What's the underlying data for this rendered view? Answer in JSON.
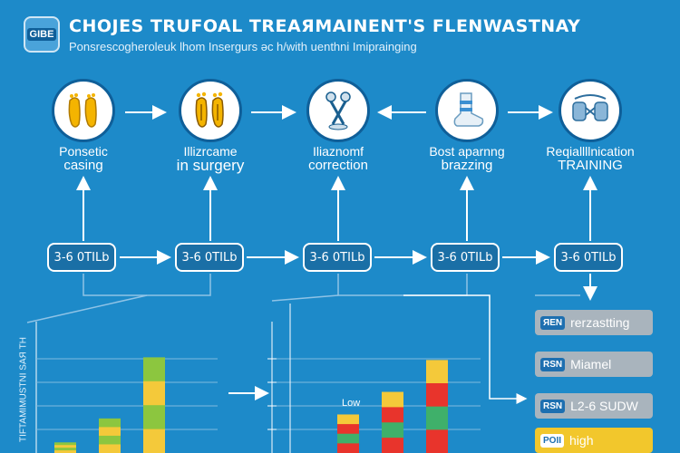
{
  "header": {
    "logo_text": "GIBE",
    "title": "CHOJES TRUFOAL TREAЯMAINENT'S FLENWASTNAY",
    "subtitle": "Ponsrescogheroleuk lhom Insergurs ǝc h/with uenthni Imiprainging"
  },
  "stages": [
    {
      "line1": "Ponsetic",
      "line2": "casing",
      "icon": "foot-cast-icon"
    },
    {
      "line1": "Illizrcame",
      "line2": "in surgery",
      "icon": "foot-surgery-icon"
    },
    {
      "line1": "Iliaznomf",
      "line2": "correction",
      "icon": "brace-correction-icon"
    },
    {
      "line1": "Bost aparnng",
      "line2": "brazzing",
      "icon": "foot-brace-icon"
    },
    {
      "line1": "Reqiallllnication",
      "line2": "TRAINING",
      "icon": "training-brace-icon"
    }
  ],
  "durations": [
    "3-6 0TILb",
    "3-6 0TILb",
    "3-6 0TILb",
    "3-6 0TILb",
    "3-6 0TILb"
  ],
  "chart_data": {
    "type": "bar",
    "ylabel": "TIFTAMIMUSTNI SAЯ TH",
    "annotation": "Low",
    "groups": [
      {
        "name": "",
        "values": [
          0.08,
          0.26,
          0.72
        ]
      },
      {
        "name": "",
        "values": [
          0.29,
          0.46,
          0.7
        ]
      }
    ],
    "colors": [
      "#f4c93a",
      "#e8342c",
      "#3fb06a",
      "#8cc63f"
    ]
  },
  "legend": [
    {
      "tag": "ЯEN",
      "text": "rerzastting"
    },
    {
      "tag": "RSN",
      "text": "Miamel"
    },
    {
      "tag": "RSN",
      "text": "L2-6 SUDW"
    },
    {
      "tag": "POII",
      "text": "high"
    }
  ],
  "colors": {
    "background": "#1d8ac9",
    "accent": "#0f5f99",
    "highlight": "#f2c72c"
  }
}
